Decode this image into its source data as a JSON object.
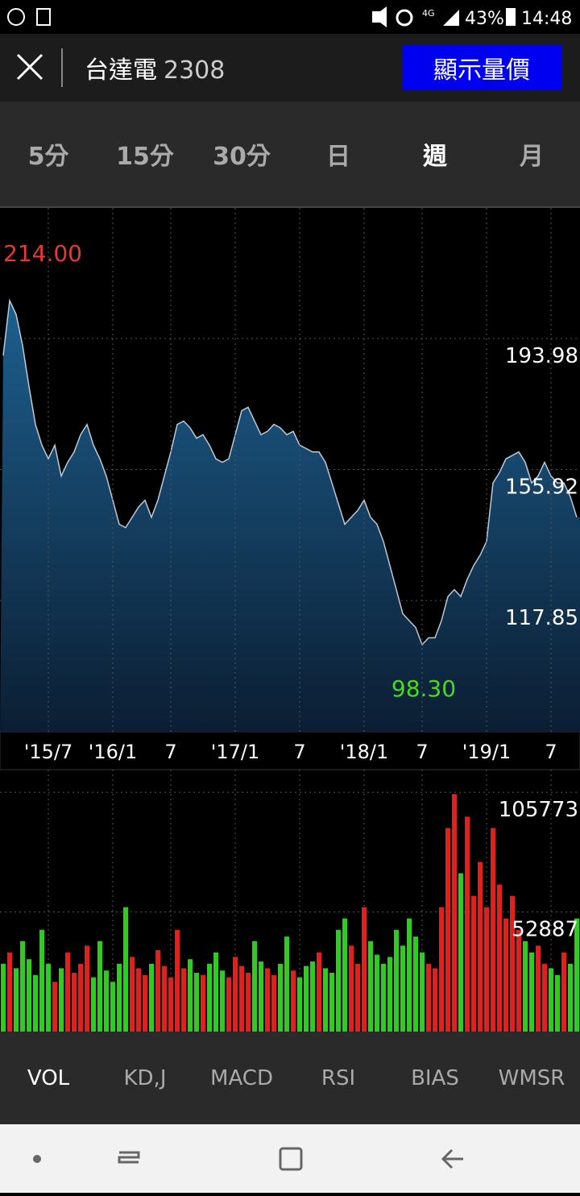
{
  "status_bar": {
    "network": "4G",
    "battery": "43%",
    "time": "14:48"
  },
  "header": {
    "name": "台達電",
    "code": "2308",
    "button": "顯示量價"
  },
  "period_tabs": {
    "items": [
      "5分",
      "15分",
      "30分",
      "日",
      "週",
      "月"
    ],
    "selected": 4
  },
  "chart_data": [
    {
      "type": "area",
      "color": "#e8f4ff",
      "values": [
        189,
        205,
        201,
        192,
        180,
        169,
        163,
        159,
        163,
        154,
        158,
        161,
        166,
        169,
        163,
        159,
        154,
        147,
        140,
        139,
        142,
        145,
        147,
        142,
        147,
        154,
        161,
        169,
        170,
        168,
        165,
        166,
        163,
        159,
        158,
        159,
        166,
        173,
        174,
        170,
        166,
        167,
        169,
        168,
        166,
        167,
        163,
        162,
        161,
        161,
        158,
        152,
        146,
        140,
        142,
        144,
        147,
        142,
        140,
        135,
        128,
        121,
        114,
        112,
        110,
        105,
        107,
        107,
        112,
        119,
        121,
        119,
        124,
        128,
        131,
        135,
        152,
        155,
        159,
        160,
        161,
        158,
        152,
        154,
        158,
        154,
        152,
        152,
        148,
        142
      ],
      "xlim": [
        -0.5,
        89.5
      ],
      "ylim": [
        79.7,
        231.9
      ],
      "yticks": [
        193.98,
        155.92,
        117.85
      ],
      "xticks": [
        {
          "value": 7,
          "label": "'15/7"
        },
        {
          "value": 17,
          "label": "'16/1"
        },
        {
          "value": 26,
          "label": "7"
        },
        {
          "value": 36,
          "label": "'17/1"
        },
        {
          "value": 46,
          "label": "7"
        },
        {
          "value": 56,
          "label": "'18/1"
        },
        {
          "value": 65,
          "label": "7"
        },
        {
          "value": 75,
          "label": "'19/1"
        },
        {
          "value": 85,
          "label": "7"
        }
      ],
      "annotations": [
        "214.00",
        "98.30"
      ],
      "grid": true
    },
    {
      "type": "bar",
      "up_color": "#e0201c",
      "down_color": "#2ecc1e",
      "values": [
        30000,
        35000,
        28000,
        40000,
        32000,
        25000,
        45000,
        30000,
        22000,
        28000,
        35000,
        26000,
        30000,
        38000,
        24000,
        40000,
        27000,
        22000,
        30000,
        55000,
        33000,
        28000,
        25000,
        30000,
        36000,
        29000,
        24000,
        45000,
        28000,
        32000,
        26000,
        25000,
        30000,
        35000,
        27000,
        24000,
        33000,
        29000,
        26000,
        40000,
        31000,
        28000,
        25000,
        30000,
        42000,
        27000,
        24000,
        29000,
        31000,
        35000,
        28000,
        26000,
        45000,
        50000,
        38000,
        30000,
        55000,
        40000,
        34000,
        30000,
        33000,
        45000,
        38000,
        50000,
        42000,
        35000,
        30000,
        28000,
        55000,
        90000,
        105000,
        70000,
        95000,
        60000,
        75000,
        55000,
        90000,
        65000,
        50000,
        60000,
        45000,
        40000,
        35000,
        38000,
        30000,
        28000,
        25000,
        35000,
        30000,
        50000
      ],
      "xlim": [
        -0.5,
        89.5
      ],
      "ylim": [
        0,
        115800
      ],
      "yticks": [
        105773,
        52887
      ],
      "grid": true
    }
  ],
  "indicator_tabs": {
    "items": [
      "VOL",
      "KD,J",
      "MACD",
      "RSI",
      "BIAS",
      "WMSR"
    ],
    "selected": 0
  }
}
